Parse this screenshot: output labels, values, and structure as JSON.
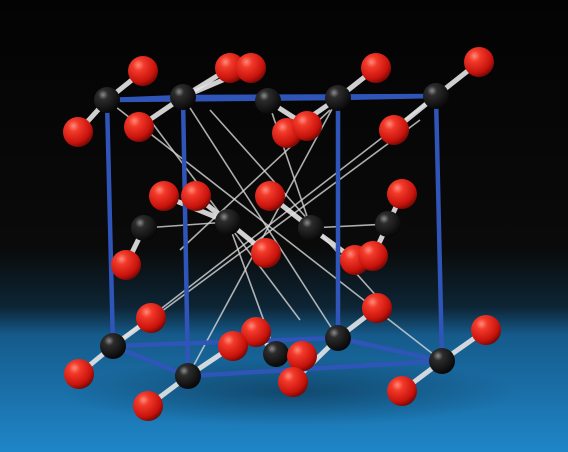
{
  "scene": {
    "subject": "molecular-crystal-model",
    "atom_colors": {
      "red": "#e81b12",
      "black": "#141414"
    },
    "frame_color": "#2f55b8",
    "bond_color": "#d8d8d8",
    "floor_color": "#1d7fc4",
    "background_color": "#050505"
  }
}
